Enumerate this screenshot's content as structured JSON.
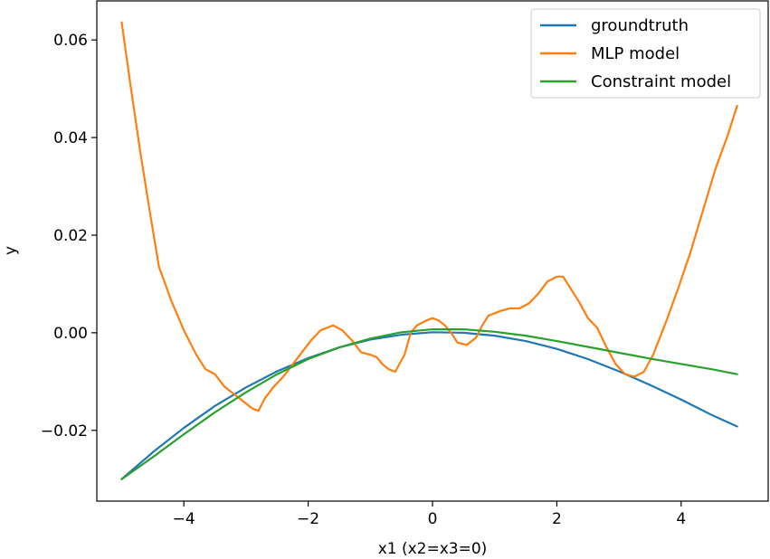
{
  "chart_data": {
    "type": "line",
    "title": "",
    "xlabel": "x1 (x2=x3=0)",
    "ylabel": "y",
    "xlim": [
      -5.4,
      5.4
    ],
    "ylim": [
      -0.0345,
      0.068
    ],
    "grid": false,
    "legend_position": "top-right",
    "x_ticks": [
      {
        "value": -4,
        "label": "−4"
      },
      {
        "value": -2,
        "label": "−2"
      },
      {
        "value": 0,
        "label": "0"
      },
      {
        "value": 2,
        "label": "2"
      },
      {
        "value": 4,
        "label": "4"
      }
    ],
    "y_ticks": [
      {
        "value": -0.02,
        "label": "−0.02"
      },
      {
        "value": 0.0,
        "label": "0.00"
      },
      {
        "value": 0.02,
        "label": "0.02"
      },
      {
        "value": 0.04,
        "label": "0.04"
      },
      {
        "value": 0.06,
        "label": "0.06"
      }
    ],
    "series": [
      {
        "name": "groundtruth",
        "color": "#1f77b4",
        "x": [
          -5.0,
          -4.5,
          -4.0,
          -3.5,
          -3.0,
          -2.5,
          -2.0,
          -1.5,
          -1.0,
          -0.5,
          0.0,
          0.5,
          1.0,
          1.5,
          2.0,
          2.5,
          3.0,
          3.5,
          4.0,
          4.5,
          4.9
        ],
        "y": [
          -0.03,
          -0.0245,
          -0.0195,
          -0.015,
          -0.0112,
          -0.0079,
          -0.0052,
          -0.003,
          -0.0014,
          -0.0004,
          0.0001,
          0.0,
          -0.0006,
          -0.0017,
          -0.0033,
          -0.0054,
          -0.0079,
          -0.0107,
          -0.0137,
          -0.0169,
          -0.0192
        ]
      },
      {
        "name": "MLP model",
        "color": "#ff7f0e",
        "x": [
          -5.0,
          -4.85,
          -4.7,
          -4.55,
          -4.4,
          -4.2,
          -4.0,
          -3.8,
          -3.65,
          -3.5,
          -3.35,
          -3.2,
          -3.05,
          -2.9,
          -2.8,
          -2.7,
          -2.55,
          -2.4,
          -2.25,
          -2.1,
          -1.95,
          -1.8,
          -1.6,
          -1.45,
          -1.3,
          -1.15,
          -1.0,
          -0.9,
          -0.8,
          -0.7,
          -0.6,
          -0.45,
          -0.35,
          -0.25,
          -0.1,
          0.0,
          0.1,
          0.2,
          0.3,
          0.4,
          0.55,
          0.7,
          0.8,
          0.9,
          1.0,
          1.1,
          1.25,
          1.4,
          1.55,
          1.7,
          1.85,
          2.0,
          2.1,
          2.2,
          2.35,
          2.5,
          2.65,
          2.8,
          2.95,
          3.1,
          3.25,
          3.4,
          3.55,
          3.75,
          3.95,
          4.15,
          4.35,
          4.55,
          4.75,
          4.9
        ],
        "y": [
          0.0636,
          0.05,
          0.037,
          0.025,
          0.0135,
          0.0065,
          0.0005,
          -0.0045,
          -0.0075,
          -0.0085,
          -0.011,
          -0.0125,
          -0.014,
          -0.0155,
          -0.016,
          -0.0135,
          -0.011,
          -0.009,
          -0.0065,
          -0.004,
          -0.0015,
          0.0005,
          0.0015,
          0.0005,
          -0.0015,
          -0.004,
          -0.0045,
          -0.005,
          -0.0065,
          -0.0075,
          -0.008,
          -0.0045,
          0.0,
          0.0015,
          0.0025,
          0.003,
          0.0025,
          0.0015,
          0.0,
          -0.002,
          -0.0025,
          -0.001,
          0.0015,
          0.0035,
          0.004,
          0.0045,
          0.005,
          0.005,
          0.006,
          0.008,
          0.0105,
          0.0115,
          0.0115,
          0.0095,
          0.0065,
          0.003,
          0.001,
          -0.003,
          -0.0065,
          -0.0085,
          -0.009,
          -0.008,
          -0.0045,
          0.002,
          0.009,
          0.0165,
          0.025,
          0.0335,
          0.0405,
          0.0465
        ]
      },
      {
        "name": "Constraint model",
        "color": "#2ca02c",
        "x": [
          -5.0,
          -4.5,
          -4.0,
          -3.5,
          -3.0,
          -2.5,
          -2.0,
          -1.5,
          -1.0,
          -0.5,
          0.0,
          0.5,
          1.0,
          1.5,
          2.0,
          2.5,
          3.0,
          3.5,
          4.0,
          4.5,
          4.9
        ],
        "y": [
          -0.03,
          -0.0255,
          -0.0208,
          -0.0163,
          -0.0122,
          -0.0085,
          -0.0054,
          -0.003,
          -0.0012,
          0.0001,
          0.0007,
          0.0007,
          0.0002,
          -0.0006,
          -0.0017,
          -0.0029,
          -0.0041,
          -0.0053,
          -0.0064,
          -0.0075,
          -0.0085
        ]
      }
    ]
  }
}
